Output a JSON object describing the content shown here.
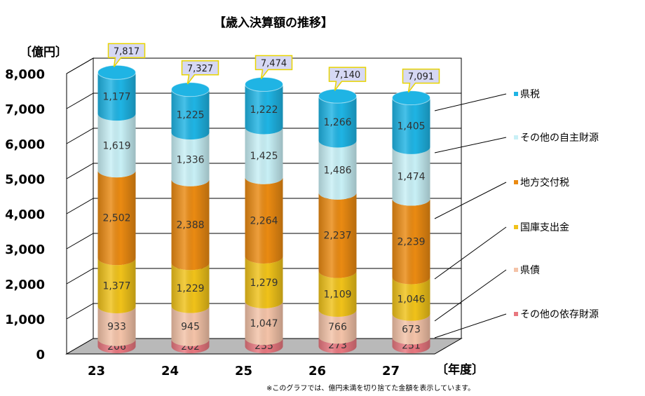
{
  "chart_data": {
    "type": "bar",
    "stacked": true,
    "title": "【歳入決算額の推移】",
    "ylabel": "〔億円〕",
    "xlabel": "〔年度〕",
    "note": "※このグラフでは、億円未満を切り捨てた金額を表示しています。",
    "ylim": [
      0,
      8000
    ],
    "yticks": [
      "0",
      "1,000",
      "2,000",
      "3,000",
      "4,000",
      "5,000",
      "6,000",
      "7,000",
      "8,000"
    ],
    "categories": [
      "23",
      "24",
      "25",
      "26",
      "27"
    ],
    "totals": [
      "7,817",
      "7,327",
      "7,474",
      "7,140",
      "7,091"
    ],
    "series": [
      {
        "name": "その他の依存財源",
        "color": "#e8777f",
        "values": [
          206,
          202,
          235,
          273,
          251
        ],
        "labels": [
          "206",
          "202",
          "235",
          "273",
          "251"
        ]
      },
      {
        "name": "県債",
        "color": "#f4c3a8",
        "values": [
          933,
          945,
          1047,
          766,
          673
        ],
        "labels": [
          "933",
          "945",
          "1,047",
          "766",
          "673"
        ]
      },
      {
        "name": "国庫支出金",
        "color": "#f0c21a",
        "values": [
          1377,
          1229,
          1279,
          1109,
          1046
        ],
        "labels": [
          "1,377",
          "1,229",
          "1,279",
          "1,109",
          "1,046"
        ]
      },
      {
        "name": "地方交付税",
        "color": "#ea8a12",
        "values": [
          2502,
          2388,
          2264,
          2237,
          2239
        ],
        "labels": [
          "2,502",
          "2,388",
          "2,264",
          "2,237",
          "2,239"
        ]
      },
      {
        "name": "その他の自主財源",
        "color": "#c8f0f6",
        "values": [
          1619,
          1336,
          1425,
          1486,
          1474
        ],
        "labels": [
          "1,619",
          "1,336",
          "1,425",
          "1,486",
          "1,474"
        ]
      },
      {
        "name": "県税",
        "color": "#1fb4e4",
        "values": [
          1177,
          1225,
          1222,
          1266,
          1405
        ],
        "labels": [
          "1,177",
          "1,225",
          "1,222",
          "1,266",
          "1,405"
        ]
      }
    ],
    "legend": [
      "県税",
      "その他の自主財源",
      "地方交付税",
      "国庫支出金",
      "県債",
      "その他の依存財源"
    ],
    "grid": true,
    "legend_position": "right"
  }
}
